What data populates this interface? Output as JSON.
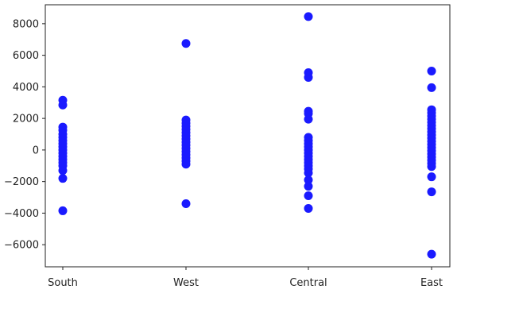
{
  "chart_data": {
    "type": "scatter",
    "title": "",
    "xlabel": "",
    "ylabel": "",
    "categories": [
      "South",
      "West",
      "Central",
      "East"
    ],
    "ylim": [
      -7400,
      9200
    ],
    "yticks": [
      8000,
      6000,
      4000,
      2000,
      0,
      -2000,
      -4000,
      -6000
    ],
    "ytick_labels": [
      "8000",
      "6000",
      "4000",
      "2000",
      "0",
      "−2000",
      "−4000",
      "−6000"
    ],
    "marker_color": "#1a1aff",
    "grid": false,
    "legend": "none",
    "points": [
      {
        "category": "South",
        "y": 3150
      },
      {
        "category": "South",
        "y": 2850
      },
      {
        "category": "South",
        "y": 1450
      },
      {
        "category": "South",
        "y": 1250
      },
      {
        "category": "South",
        "y": 1000
      },
      {
        "category": "South",
        "y": 800
      },
      {
        "category": "South",
        "y": 600
      },
      {
        "category": "South",
        "y": 400
      },
      {
        "category": "South",
        "y": 200
      },
      {
        "category": "South",
        "y": 0
      },
      {
        "category": "South",
        "y": -200
      },
      {
        "category": "South",
        "y": -400
      },
      {
        "category": "South",
        "y": -600
      },
      {
        "category": "South",
        "y": -800
      },
      {
        "category": "South",
        "y": -1000
      },
      {
        "category": "South",
        "y": -1300
      },
      {
        "category": "South",
        "y": -1800
      },
      {
        "category": "South",
        "y": -3850
      },
      {
        "category": "West",
        "y": 6750
      },
      {
        "category": "West",
        "y": 1900
      },
      {
        "category": "West",
        "y": 1700
      },
      {
        "category": "West",
        "y": 1500
      },
      {
        "category": "West",
        "y": 1300
      },
      {
        "category": "West",
        "y": 1100
      },
      {
        "category": "West",
        "y": 900
      },
      {
        "category": "West",
        "y": 700
      },
      {
        "category": "West",
        "y": 500
      },
      {
        "category": "West",
        "y": 300
      },
      {
        "category": "West",
        "y": 100
      },
      {
        "category": "West",
        "y": -100
      },
      {
        "category": "West",
        "y": -300
      },
      {
        "category": "West",
        "y": -500
      },
      {
        "category": "West",
        "y": -700
      },
      {
        "category": "West",
        "y": -900
      },
      {
        "category": "West",
        "y": -3400
      },
      {
        "category": "Central",
        "y": 8450
      },
      {
        "category": "Central",
        "y": 4900
      },
      {
        "category": "Central",
        "y": 4600
      },
      {
        "category": "Central",
        "y": 2450
      },
      {
        "category": "Central",
        "y": 2300
      },
      {
        "category": "Central",
        "y": 1950
      },
      {
        "category": "Central",
        "y": 800
      },
      {
        "category": "Central",
        "y": 600
      },
      {
        "category": "Central",
        "y": 400
      },
      {
        "category": "Central",
        "y": 200
      },
      {
        "category": "Central",
        "y": 0
      },
      {
        "category": "Central",
        "y": -200
      },
      {
        "category": "Central",
        "y": -400
      },
      {
        "category": "Central",
        "y": -600
      },
      {
        "category": "Central",
        "y": -800
      },
      {
        "category": "Central",
        "y": -1000
      },
      {
        "category": "Central",
        "y": -1200
      },
      {
        "category": "Central",
        "y": -1450
      },
      {
        "category": "Central",
        "y": -1900
      },
      {
        "category": "Central",
        "y": -2300
      },
      {
        "category": "Central",
        "y": -2900
      },
      {
        "category": "Central",
        "y": -3700
      },
      {
        "category": "East",
        "y": 5000
      },
      {
        "category": "East",
        "y": 3950
      },
      {
        "category": "East",
        "y": 2550
      },
      {
        "category": "East",
        "y": 2350
      },
      {
        "category": "East",
        "y": 2150
      },
      {
        "category": "East",
        "y": 1950
      },
      {
        "category": "East",
        "y": 1750
      },
      {
        "category": "East",
        "y": 1550
      },
      {
        "category": "East",
        "y": 1350
      },
      {
        "category": "East",
        "y": 1150
      },
      {
        "category": "East",
        "y": 950
      },
      {
        "category": "East",
        "y": 750
      },
      {
        "category": "East",
        "y": 550
      },
      {
        "category": "East",
        "y": 350
      },
      {
        "category": "East",
        "y": 150
      },
      {
        "category": "East",
        "y": -50
      },
      {
        "category": "East",
        "y": -250
      },
      {
        "category": "East",
        "y": -450
      },
      {
        "category": "East",
        "y": -650
      },
      {
        "category": "East",
        "y": -850
      },
      {
        "category": "East",
        "y": -1050
      },
      {
        "category": "East",
        "y": -1700
      },
      {
        "category": "East",
        "y": -2650
      },
      {
        "category": "East",
        "y": -6600
      }
    ]
  }
}
